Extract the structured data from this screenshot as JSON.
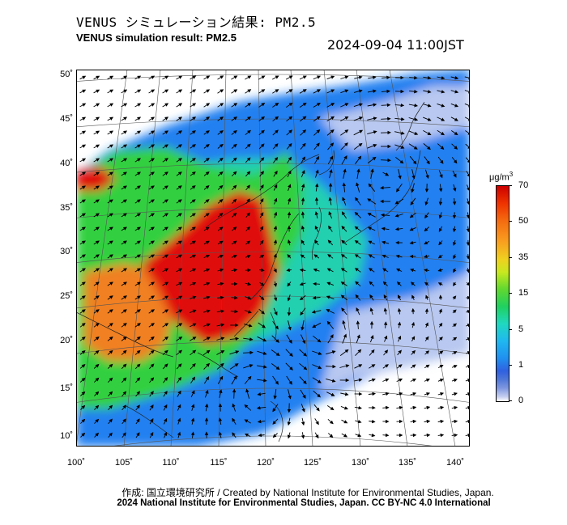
{
  "header": {
    "title_jp": "VENUS シミュレーション結果: PM2.5",
    "title_en": "VENUS simulation result: PM2.5",
    "timestamp": "2024-09-04 11:00JST"
  },
  "map": {
    "lat_labels": [
      "50˚",
      "45˚",
      "40˚",
      "35˚",
      "30˚",
      "25˚",
      "20˚",
      "15˚",
      "10˚"
    ],
    "lon_labels": [
      "100˚",
      "105˚",
      "110˚",
      "115˚",
      "120˚",
      "125˚",
      "130˚",
      "135˚",
      "140˚"
    ],
    "colors": {
      "very_high": "#e01010",
      "high": "#f08020",
      "moderate": "#30d040",
      "low_moderate": "#20d0b0",
      "low": "#2080f0",
      "very_low": "#b8c8f0",
      "land_mask": "#ffffff"
    }
  },
  "colorbar": {
    "unit": "μg/m",
    "unit_sup": "3",
    "labels": [
      "70",
      "50",
      "35",
      "15",
      "5",
      "1",
      "0"
    ]
  },
  "footer": {
    "credit_jp": "作成: 国立環境研究所 / Created by National Institute for Environmental Studies, Japan.",
    "copyright": "2024 National Institute for Environmental Studies, Japan. CC BY-NC 4.0 International"
  }
}
